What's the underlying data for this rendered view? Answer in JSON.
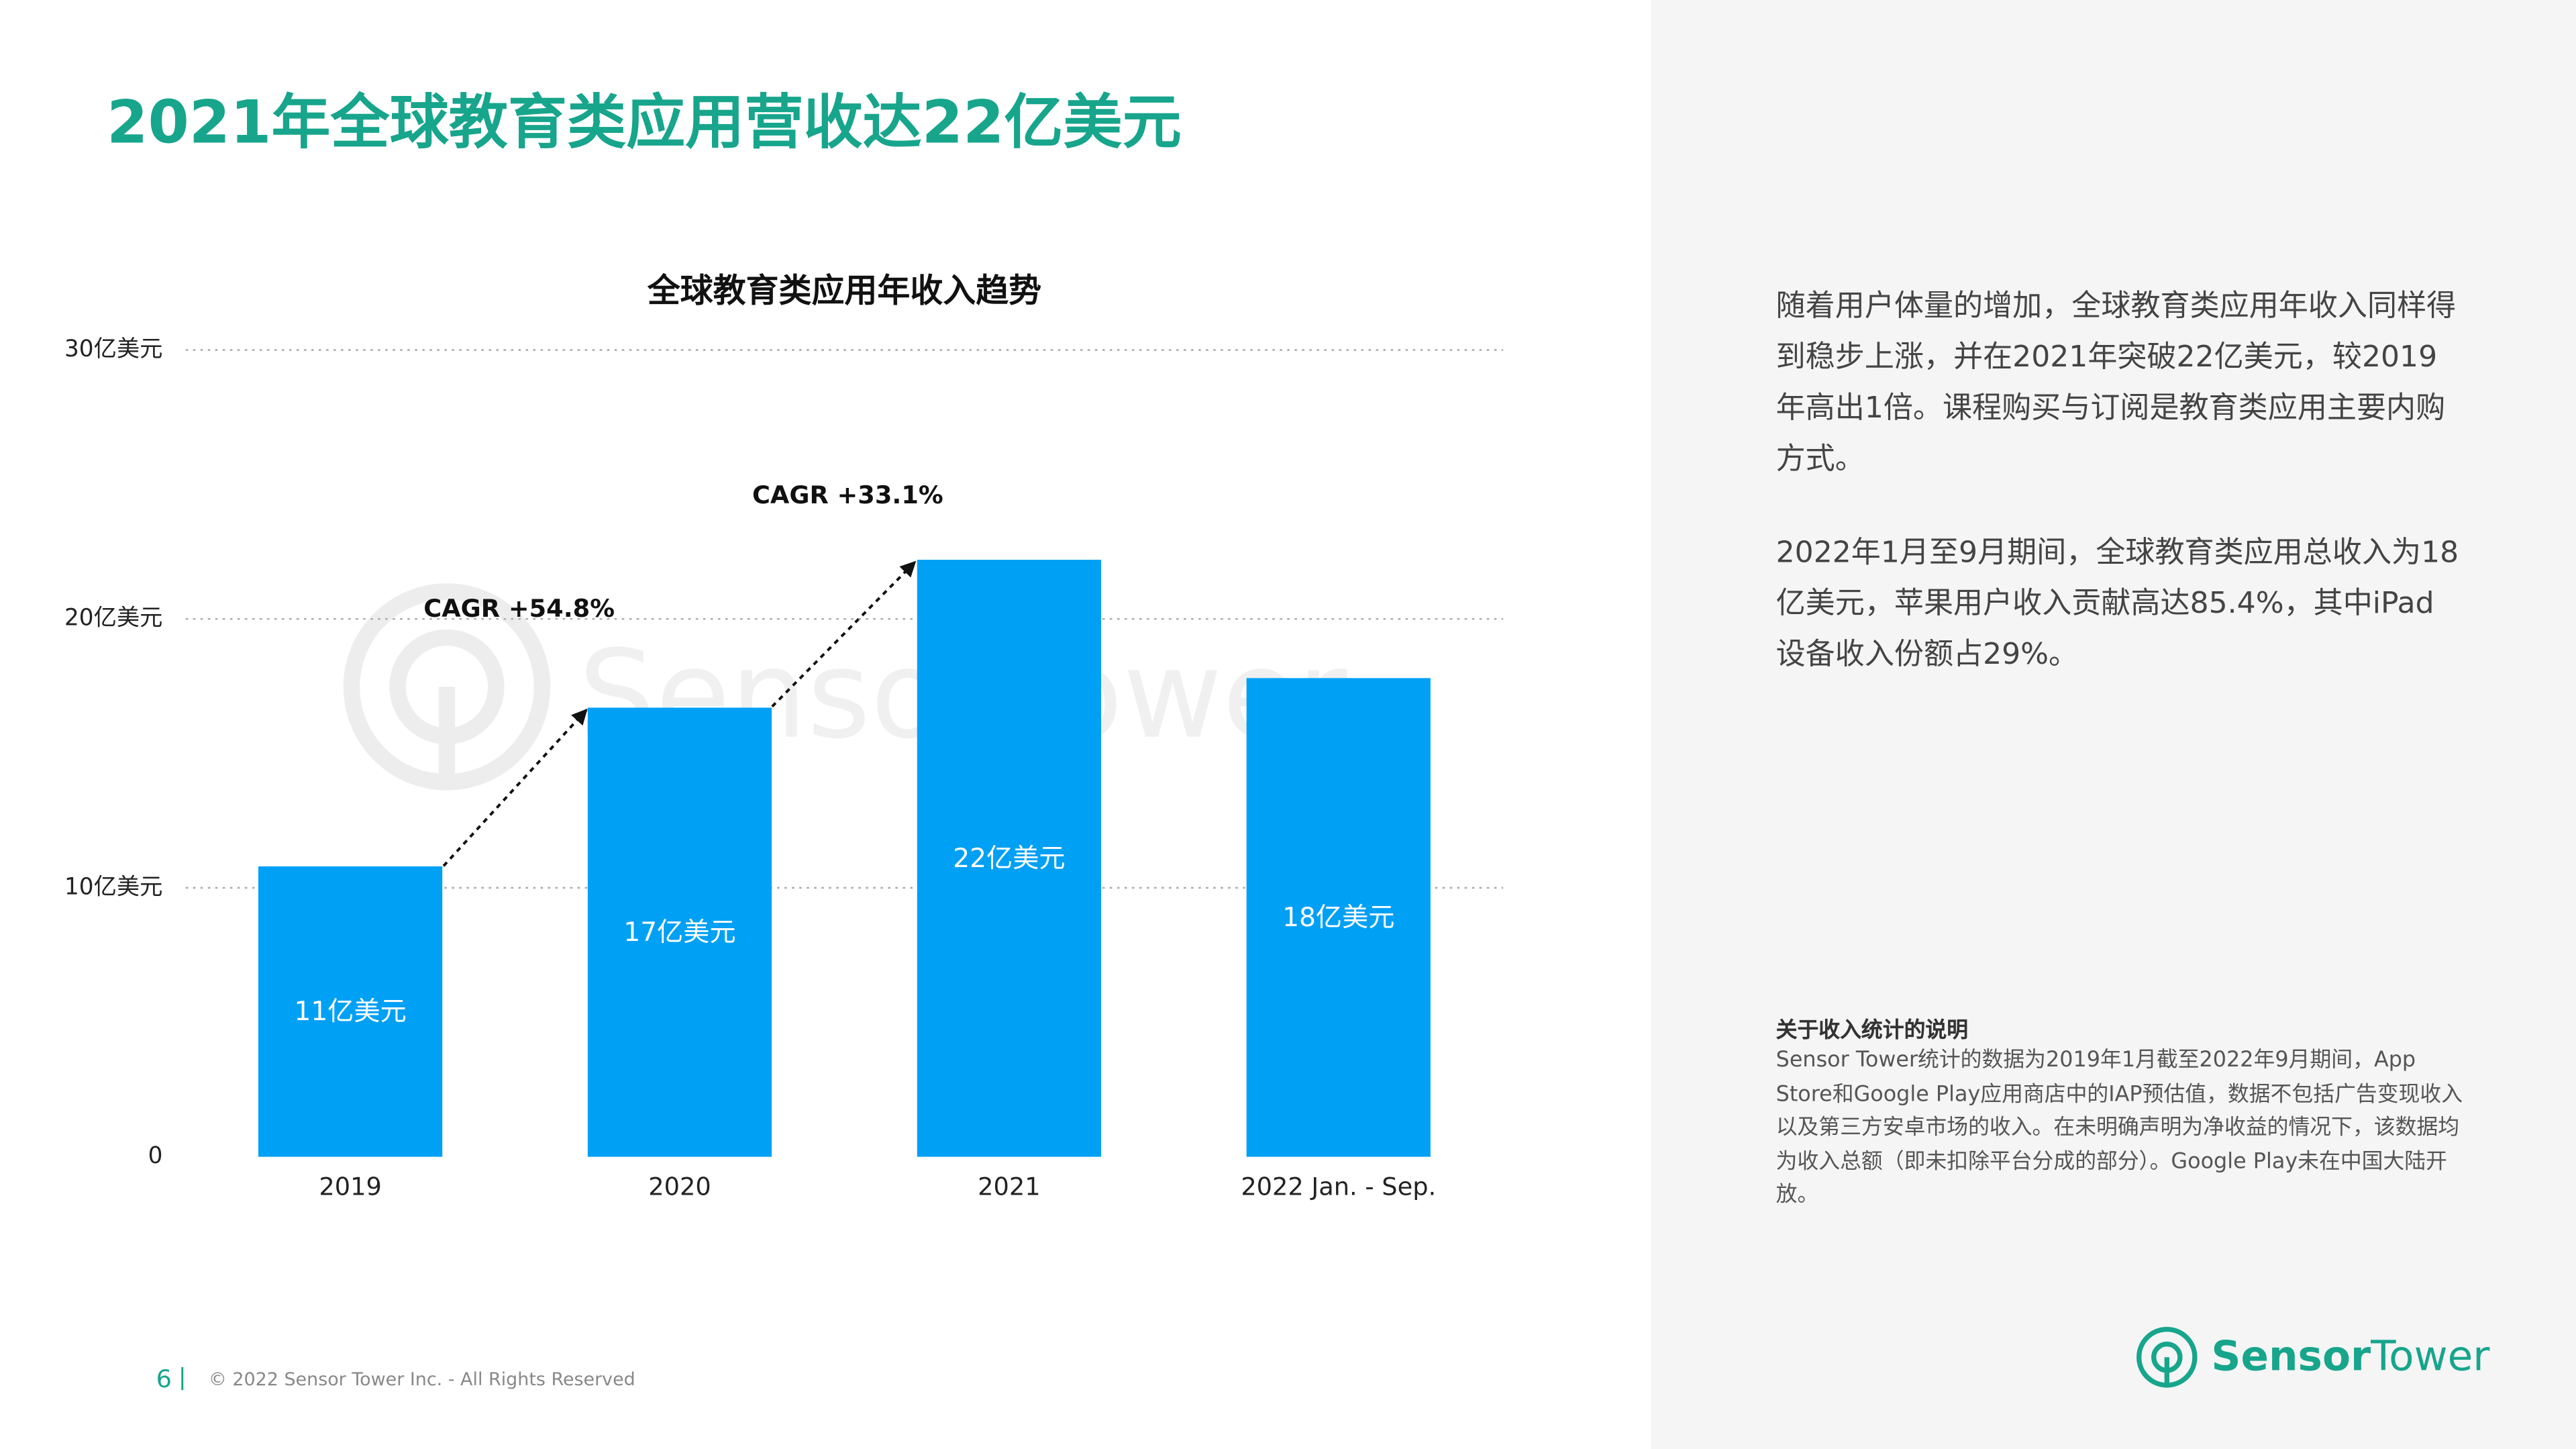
{
  "header": {
    "title": "2021年全球教育类应用营收达22亿美元"
  },
  "chart_data": {
    "type": "bar",
    "title": "全球教育类应用年收入趋势",
    "categories": [
      "2019",
      "2020",
      "2021",
      "2022 Jan. - Sep."
    ],
    "values": [
      10.8,
      16.7,
      22.2,
      17.8
    ],
    "value_labels": [
      "11亿美元",
      "17亿美元",
      "22亿美元",
      "18亿美元"
    ],
    "color": "#00a0f5",
    "ylim": [
      0,
      30
    ],
    "yticks": [
      0,
      {
        "value": 10,
        "label": "10亿美元"
      },
      {
        "value": 20,
        "label": "20亿美元"
      },
      {
        "value": 30,
        "label": "30亿美元"
      }
    ],
    "grid": true,
    "annotations": [
      "CAGR +54.8%",
      "CAGR +33.1%"
    ],
    "watermark": "SensorTower"
  },
  "sidebar": {
    "paragraphs": [
      "随着用户体量的增加，全球教育类应用年收入同样得到稳步上涨，并在2021年突破22亿美元，较2019年高出1倍。课程购买与订阅是教育类应用主要内购方式。",
      "2022年1月至9月期间，全球教育类应用总收入为18亿美元，苹果用户收入贡献高达85.4%，其中iPad设备收入份额占29%。"
    ],
    "note_title": "关于收入统计的说明",
    "note": "Sensor Tower统计的数据为2019年1月截至2022年9月期间，App Store和Google Play应用商店中的IAP预估值，数据不包括广告变现收入以及第三方安卓市场的收入。在未明确声明为净收益的情况下，该数据均为收入总额（即未扣除平台分成的部分）。Google Play未在中国大陆开放。"
  },
  "footer": {
    "page": "6",
    "copyright": "© 2022 Sensor Tower Inc. - All Rights Reserved"
  },
  "logo": {
    "word1": "Sensor",
    "word2": "Tower"
  }
}
